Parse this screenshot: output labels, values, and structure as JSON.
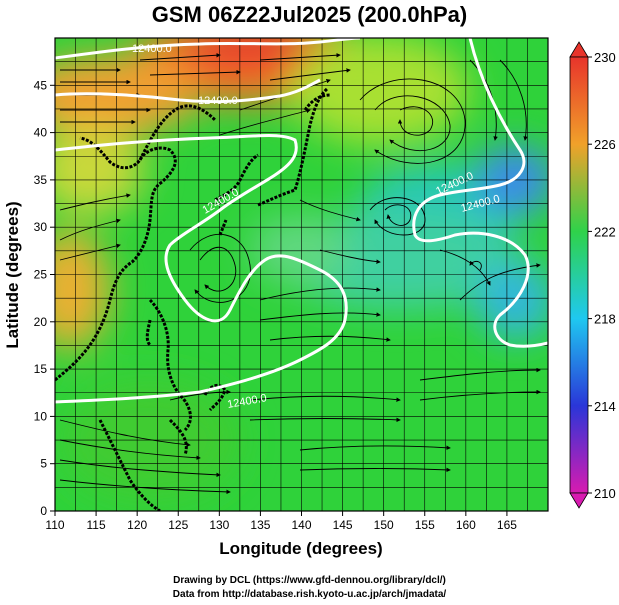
{
  "title": "GSM 06Z22Jul2025 (200.0hPa)",
  "x_axis": {
    "label": "Longitude (degrees)",
    "ticks": [
      110,
      115,
      120,
      125,
      130,
      135,
      140,
      145,
      150,
      155,
      160,
      165
    ],
    "range": [
      110,
      170
    ]
  },
  "y_axis": {
    "label": "Latitude (degrees)",
    "ticks": [
      0,
      5,
      10,
      15,
      20,
      25,
      30,
      35,
      40,
      45
    ],
    "range": [
      0,
      50
    ]
  },
  "colorbar": {
    "ticks": [
      230,
      226,
      222,
      218,
      214,
      210
    ],
    "range": [
      210,
      230
    ],
    "colors": [
      "#d81bb0",
      "#2a36d8",
      "#1fc8f0",
      "#2fd24a",
      "#f0a12a",
      "#e8342b"
    ]
  },
  "contour_labels": [
    "12400.0",
    "12400.0",
    "12400.0",
    "12400.0",
    "12400.0",
    "12400.0"
  ],
  "credits": {
    "line1": "Drawing by DCL (https://www.gfd-dennou.org/library/dcl/)",
    "line2": "Data from http://database.rish.kyoto-u.ac.jp/arch/jmadata/"
  }
}
